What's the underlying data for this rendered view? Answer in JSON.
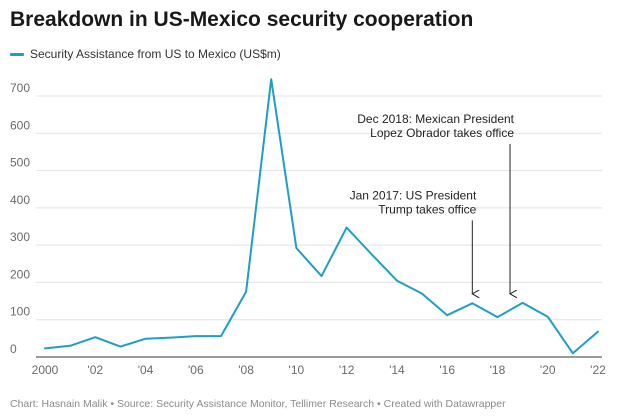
{
  "header": {
    "title": "Breakdown in US-Mexico security cooperation"
  },
  "footer": {
    "text": "Chart: Hasnain Malik • Source: Security Assistance Monitor, Tellimer Research • Created with Datawrapper"
  },
  "colors": {
    "series": "#1d9fc4",
    "grid": "#e3e3e3",
    "axis": "#333333"
  },
  "chart_data": {
    "type": "line",
    "title": "Breakdown in US-Mexico security cooperation",
    "xlabel": "",
    "ylabel": "",
    "ylim": [
      0,
      700
    ],
    "xlim": [
      2000,
      2022
    ],
    "y_ticks": [
      0,
      100,
      200,
      300,
      400,
      500,
      600,
      700
    ],
    "y_tick_labels": [
      "0",
      "100",
      "200",
      "300",
      "400",
      "500",
      "600",
      "700"
    ],
    "x_ticks": [
      2000,
      2002,
      2004,
      2006,
      2008,
      2010,
      2012,
      2014,
      2016,
      2018,
      2020,
      2022
    ],
    "x_tick_labels": [
      "2000",
      "'02",
      "'04",
      "'06",
      "'08",
      "'10",
      "'12",
      "'14",
      "'16",
      "'18",
      "'20",
      "'22"
    ],
    "grid": true,
    "legend": "top-left",
    "series": [
      {
        "name": "Security Assistance from US to Mexico (US$m)",
        "x": [
          2000,
          2001,
          2002,
          2003,
          2004,
          2005,
          2006,
          2007,
          2008,
          2009,
          2010,
          2011,
          2012,
          2013,
          2014,
          2015,
          2016,
          2017,
          2018,
          2019,
          2020,
          2021,
          2022
        ],
        "values": [
          23,
          30,
          53,
          28,
          49,
          52,
          56,
          56,
          175,
          745,
          292,
          217,
          347,
          275,
          205,
          170,
          112,
          144,
          107,
          145,
          108,
          10,
          68
        ]
      }
    ],
    "annotations": [
      {
        "lines": [
          "Jan 2017: US President",
          "Trump takes office"
        ],
        "x": 2017.0,
        "y": 172,
        "label_anchor_y": 385
      },
      {
        "lines": [
          "Dec 2018: Mexican President",
          "Lopez Obrador takes office"
        ],
        "x": 2018.5,
        "y": 172,
        "label_anchor_y": 590
      }
    ]
  }
}
